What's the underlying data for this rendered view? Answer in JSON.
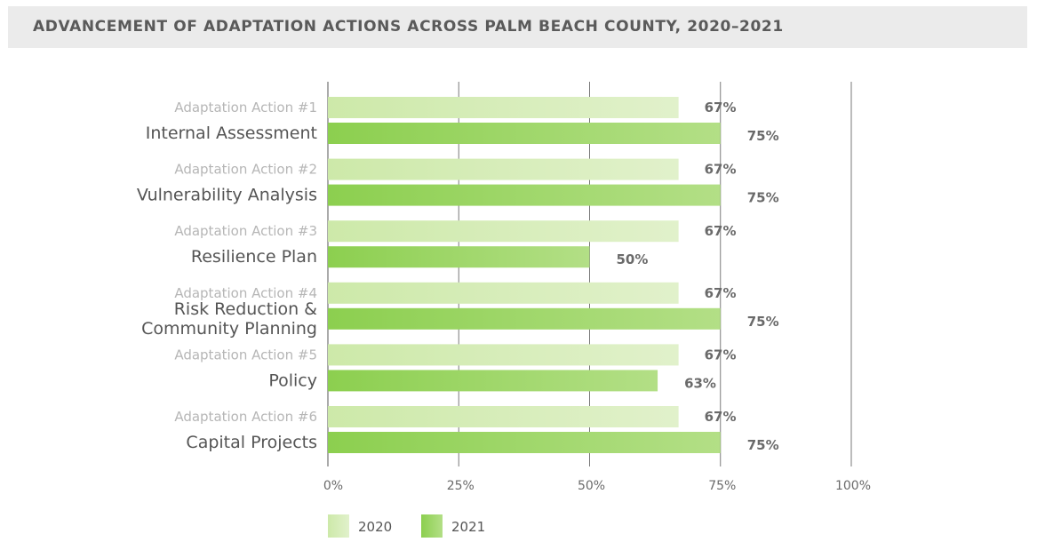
{
  "title": "ADVANCEMENT OF ADAPTATION ACTIONS ACROSS PALM BEACH COUNTY, 2020–2021",
  "chart_data": {
    "type": "bar",
    "orientation": "horizontal",
    "categories": [
      {
        "action": "Adaptation Action #1",
        "name": [
          "Internal Assessment"
        ]
      },
      {
        "action": "Adaptation Action #2",
        "name": [
          "Vulnerability Analysis"
        ]
      },
      {
        "action": "Adaptation Action #3",
        "name": [
          "Resilience Plan"
        ]
      },
      {
        "action": "Adaptation Action #4",
        "name": [
          "Risk Reduction &",
          "Community Planning"
        ]
      },
      {
        "action": "Adaptation Action #5",
        "name": [
          "Policy"
        ]
      },
      {
        "action": "Adaptation Action #6",
        "name": [
          "Capital Projects"
        ]
      }
    ],
    "series": [
      {
        "name": "2020",
        "values": [
          67,
          67,
          67,
          67,
          67,
          67
        ],
        "labels": [
          "67%",
          "67%",
          "67%",
          "67%",
          "67%",
          "67%"
        ],
        "color": "#d3ecb4"
      },
      {
        "name": "2021",
        "values": [
          75,
          75,
          50,
          75,
          63,
          75
        ],
        "labels": [
          "75%",
          "75%",
          "50%",
          "75%",
          "63%",
          "75%"
        ],
        "color": "#9fd86a"
      }
    ],
    "xlim": [
      0,
      100
    ],
    "xticks": [
      0,
      25,
      50,
      75,
      100
    ],
    "xtick_labels": [
      "0%",
      "25%",
      "50%",
      "75%",
      "100%"
    ],
    "grid": true,
    "legend_position": "bottom-left"
  }
}
